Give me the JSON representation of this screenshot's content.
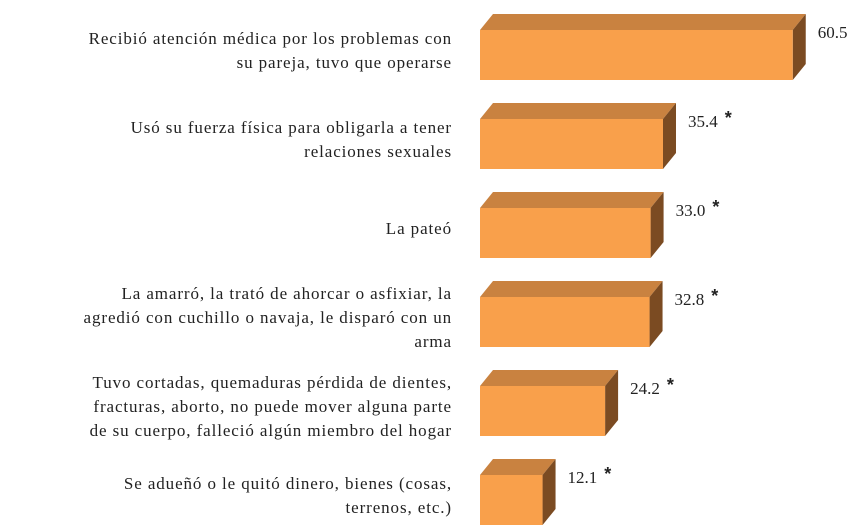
{
  "chart_data": {
    "type": "bar3d-horizontal",
    "categories": [
      [
        "Recibió atención médica por los problemas con",
        "su pareja, tuvo que operarse"
      ],
      [
        "Usó su fuerza física para obligarla a tener",
        "relaciones sexuales"
      ],
      [
        "La pateó"
      ],
      [
        "La amarró, la trató de ahorcar o asfixiar, la",
        "agredió con cuchillo o navaja, le disparó con un",
        "arma"
      ],
      [
        "Tuvo cortadas, quemaduras pérdida de dientes,",
        "fracturas, aborto, no puede mover alguna parte",
        "de su cuerpo, falleció algún miembro del hogar"
      ],
      [
        "Se adueñó o le quitó dinero, bienes (cosas,",
        "terrenos, etc.)"
      ]
    ],
    "values": [
      60.5,
      35.4,
      33.0,
      32.8,
      24.2,
      12.1
    ],
    "value_labels": [
      "60.5",
      "35.4",
      "33.0",
      "32.8",
      "24.2",
      "12.1"
    ],
    "significance": [
      null,
      "*",
      "*",
      "*",
      "*",
      "*"
    ],
    "colors": {
      "front": "#f9a04b",
      "top": "#c98240",
      "side": "#7b4b22"
    },
    "xlim": [
      0,
      65
    ]
  }
}
